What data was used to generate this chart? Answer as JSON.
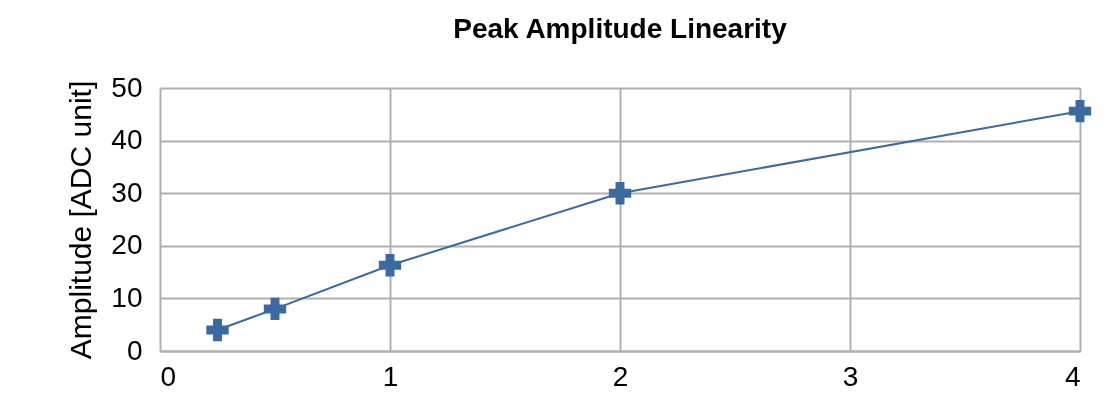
{
  "chart_data": {
    "type": "line",
    "title": "Peak Amplitude Linearity",
    "ylabel": "Amplitude [ADC unit]",
    "x": [
      0.25,
      0.5,
      1,
      2,
      4
    ],
    "series": [
      {
        "color": "#3b6aa0",
        "values": [
          4.0,
          8.0,
          16.3,
          30.0,
          45.6
        ]
      }
    ],
    "xlim": [
      0,
      4
    ],
    "xticks": [
      0,
      1,
      2,
      3,
      4
    ],
    "ylim": [
      0,
      50
    ],
    "yticks": [
      0,
      10,
      20,
      30,
      40,
      50
    ],
    "grid": true,
    "legend": false,
    "marker": "cross",
    "line_style": "solid"
  }
}
